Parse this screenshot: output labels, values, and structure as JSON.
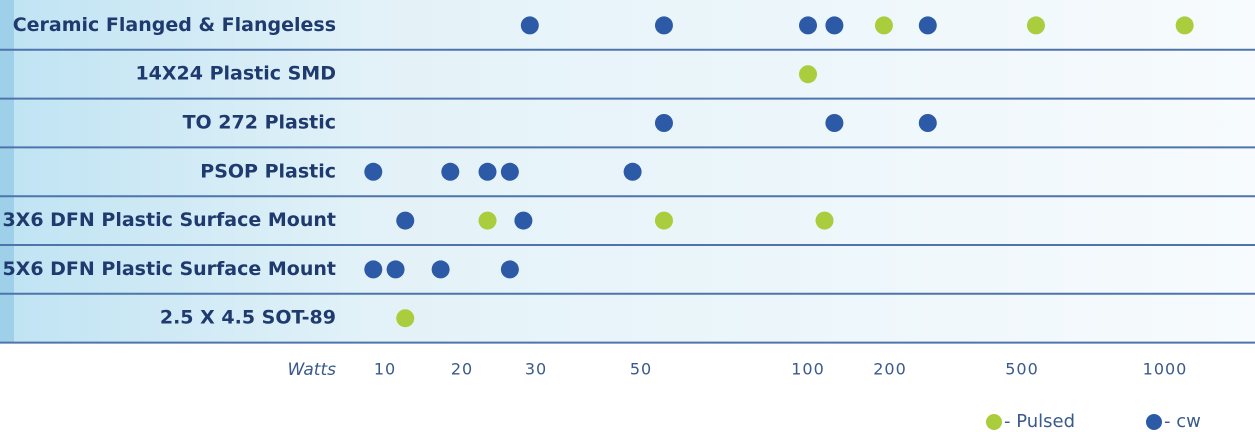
{
  "chart_data": {
    "type": "dot",
    "categories": [
      "Ceramic Flanged & Flangeless",
      "14X24 Plastic SMD",
      "TO 272 Plastic",
      "PSOP Plastic",
      "3X6 DFN Plastic Surface Mount",
      "5X6 DFN Plastic Surface Mount",
      "2.5 X 4.5 SOT-89"
    ],
    "x_label": "Watts",
    "xticks": [
      10,
      20,
      30,
      50,
      100,
      200,
      500,
      1000
    ],
    "series": [
      {
        "name": "- Pulsed",
        "color": "#a9cd3c",
        "values": [
          [
            190,
            535,
            1100
          ],
          [
            100
          ],
          [],
          [],
          [
            23,
            55,
            115
          ],
          [],
          [
            12
          ]
        ]
      },
      {
        "name": "- cw",
        "color": "#2d5aa6",
        "values": [
          [
            29,
            55,
            100,
            125,
            260
          ],
          [],
          [
            55,
            125,
            260
          ],
          [
            9,
            18,
            23,
            26,
            48
          ],
          [
            12,
            28
          ],
          [
            9,
            11,
            16.5,
            26
          ],
          []
        ]
      }
    ],
    "legend": "bottom-right"
  }
}
